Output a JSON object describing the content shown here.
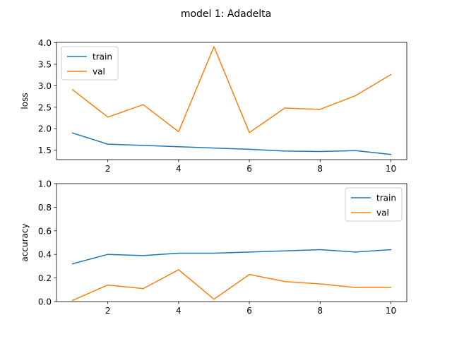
{
  "figure": {
    "title": "model 1: Adadelta"
  },
  "colors": {
    "train": "#1f77b4",
    "val": "#ff7f0e",
    "axes": "#000000",
    "background": "#ffffff"
  },
  "chart_data": [
    {
      "type": "line",
      "title": "",
      "xlabel": "",
      "ylabel": "loss",
      "x": [
        1,
        2,
        3,
        4,
        5,
        6,
        7,
        8,
        9,
        10
      ],
      "xticks": [
        2,
        4,
        6,
        8,
        10
      ],
      "xticklabels": [
        "2",
        "4",
        "6",
        "8",
        "10"
      ],
      "xlim": [
        0.55,
        10.45
      ],
      "ylim": [
        1.28,
        4.01
      ],
      "yticks": [
        1.5,
        2.0,
        2.5,
        3.0,
        3.5,
        4.0
      ],
      "yticklabels": [
        "1.5",
        "2.0",
        "2.5",
        "3.0",
        "3.5",
        "4.0"
      ],
      "grid": false,
      "legend": "upper left",
      "series": [
        {
          "name": "train",
          "values": [
            1.9,
            1.64,
            1.61,
            1.58,
            1.55,
            1.52,
            1.48,
            1.47,
            1.49,
            1.4
          ]
        },
        {
          "name": "val",
          "values": [
            2.91,
            2.27,
            2.56,
            1.93,
            3.91,
            1.91,
            2.48,
            2.45,
            2.77,
            3.26
          ]
        }
      ]
    },
    {
      "type": "line",
      "title": "",
      "xlabel": "",
      "ylabel": "accuracy",
      "x": [
        1,
        2,
        3,
        4,
        5,
        6,
        7,
        8,
        9,
        10
      ],
      "xticks": [
        2,
        4,
        6,
        8,
        10
      ],
      "xticklabels": [
        "2",
        "4",
        "6",
        "8",
        "10"
      ],
      "xlim": [
        0.55,
        10.45
      ],
      "ylim": [
        0,
        1.0
      ],
      "yticks": [
        0.0,
        0.2,
        0.4,
        0.6,
        0.8,
        1.0
      ],
      "yticklabels": [
        "0.0",
        "0.2",
        "0.4",
        "0.6",
        "0.8",
        "1.0"
      ],
      "grid": false,
      "legend": "upper right",
      "series": [
        {
          "name": "train",
          "values": [
            0.32,
            0.4,
            0.39,
            0.41,
            0.41,
            0.42,
            0.43,
            0.44,
            0.42,
            0.44
          ]
        },
        {
          "name": "val",
          "values": [
            0.01,
            0.14,
            0.11,
            0.27,
            0.02,
            0.23,
            0.17,
            0.15,
            0.12,
            0.12
          ]
        }
      ]
    }
  ]
}
